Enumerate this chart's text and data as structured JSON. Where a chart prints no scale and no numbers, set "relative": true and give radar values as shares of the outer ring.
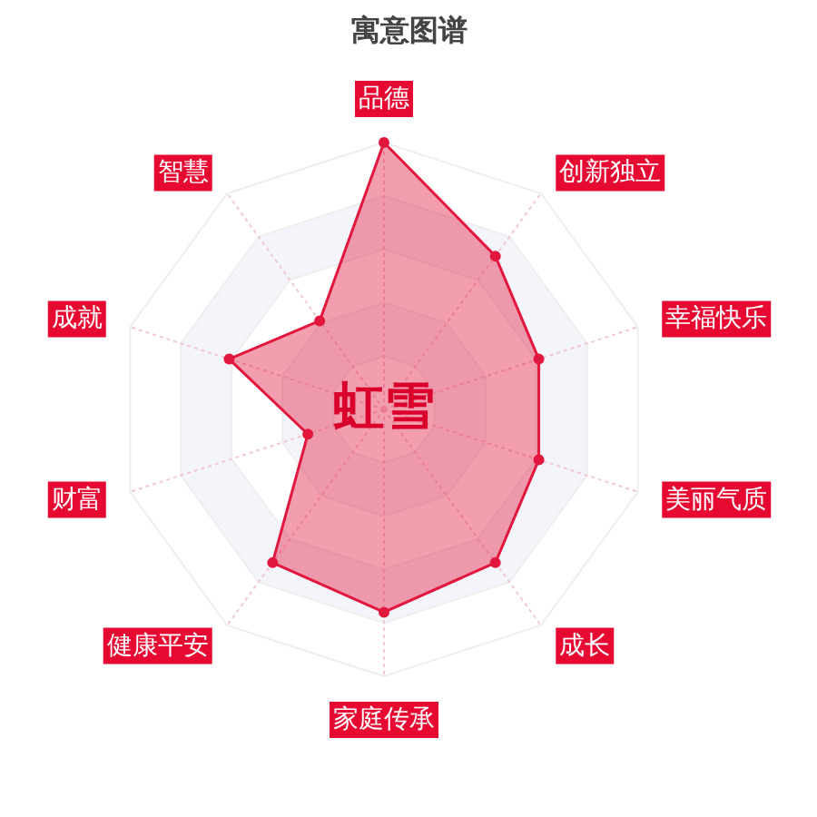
{
  "chart_data": {
    "type": "radar",
    "title": "寓意图谱",
    "categories": [
      "品德",
      "创新独立",
      "幸福快乐",
      "美丽气质",
      "成长",
      "家庭传承",
      "健康平安",
      "财富",
      "成就",
      "智慧"
    ],
    "relative": true,
    "series": [
      {
        "color": "#e2173e",
        "values": [
          1.0,
          0.71,
          0.61,
          0.61,
          0.71,
          0.76,
          0.71,
          0.3,
          0.61,
          0.41
        ]
      }
    ],
    "annotations": [
      "虹雪"
    ],
    "marker": "circle",
    "grid": true
  }
}
